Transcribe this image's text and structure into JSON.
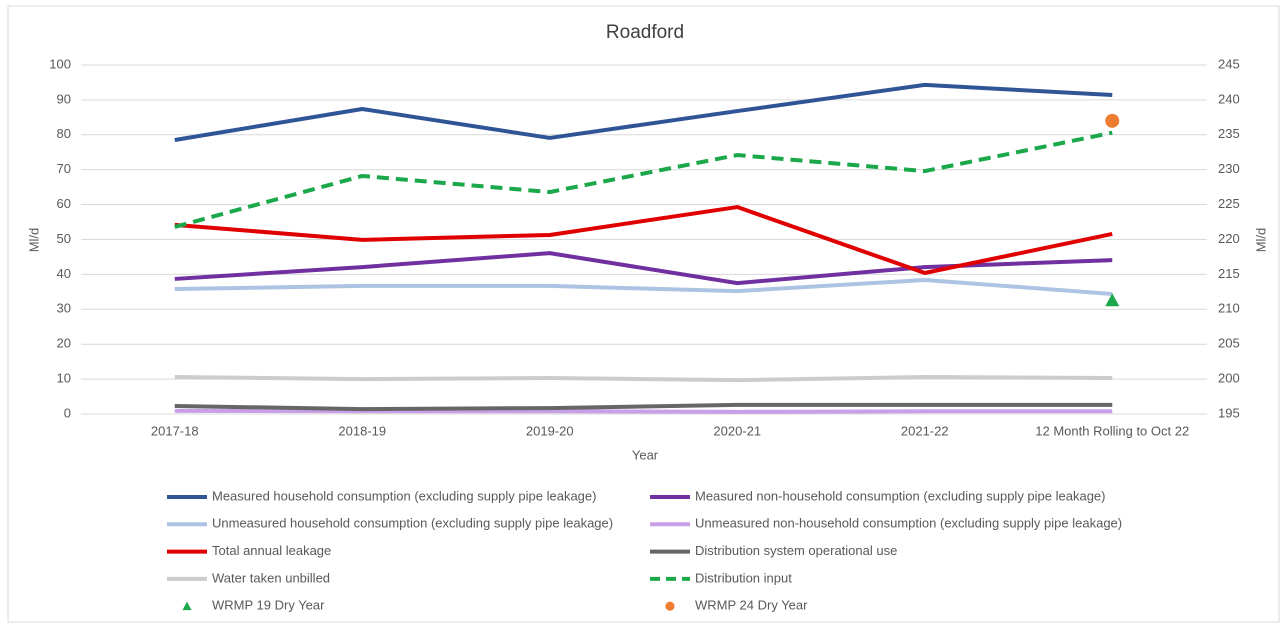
{
  "chart_data": {
    "type": "line",
    "title": "Roadford",
    "x_label": "Year",
    "y_label": "Ml/d",
    "y2_label": "Ml/d",
    "categories": [
      "2017-18",
      "2018-19",
      "2019-20",
      "2020-21",
      "2021-22",
      "12 Month Rolling to Oct 22"
    ],
    "ylim": [
      0,
      100
    ],
    "yticks": [
      0,
      10,
      20,
      30,
      40,
      50,
      60,
      70,
      80,
      90,
      100
    ],
    "y2lim": [
      195,
      245
    ],
    "y2ticks": [
      195,
      200,
      205,
      210,
      215,
      220,
      225,
      230,
      235,
      240,
      245
    ],
    "grid": true,
    "series": [
      {
        "name": "Measured household consumption (excluding supply pipe leakage)",
        "color": "#2f5597",
        "values": [
          78.5,
          87.4,
          79.1,
          86.8,
          94.3,
          91.4
        ]
      },
      {
        "name": "Measured non-household consumption (excluding supply pipe leakage)",
        "color": "#7030a0",
        "values": [
          38.7,
          42.1,
          46.1,
          37.5,
          42.1,
          44.1
        ]
      },
      {
        "name": "Unmeasured household consumption (excluding supply pipe leakage)",
        "color": "#adc3e4",
        "values": [
          35.8,
          36.7,
          36.7,
          35.2,
          38.4,
          34.4
        ]
      },
      {
        "name": "Unmeasured non-household consumption (excluding supply pipe leakage)",
        "color": "#c9a0e8",
        "values": [
          0.9,
          0.8,
          0.8,
          0.6,
          0.8,
          0.8
        ]
      },
      {
        "name": "Total annual leakage",
        "color": "#e00000",
        "values": [
          54.2,
          49.9,
          51.3,
          59.3,
          40.4,
          51.6
        ]
      },
      {
        "name": "Distribution system operational use",
        "color": "#666666",
        "values": [
          2.3,
          1.4,
          1.7,
          2.6,
          2.6,
          2.6
        ]
      },
      {
        "name": "Water taken unbilled",
        "color": "#cccccc",
        "values": [
          10.6,
          10.0,
          10.3,
          9.7,
          10.6,
          10.3
        ]
      },
      {
        "name": "Distribution input",
        "color": "#1aa84a",
        "dash": true,
        "axis": "y2",
        "values": [
          221.8,
          229.1,
          226.8,
          232.1,
          229.8,
          235.3
        ]
      },
      {
        "name": "WRMP 19 Dry Year",
        "color": "#1aa84a",
        "marker": "triangle",
        "axis": "y2",
        "values": [
          null,
          null,
          null,
          null,
          null,
          211.3
        ]
      },
      {
        "name": "WRMP 24 Dry Year",
        "color": "#ed7d31",
        "marker": "circle",
        "axis": "y2",
        "values": [
          null,
          null,
          null,
          null,
          null,
          237.0
        ]
      }
    ]
  }
}
